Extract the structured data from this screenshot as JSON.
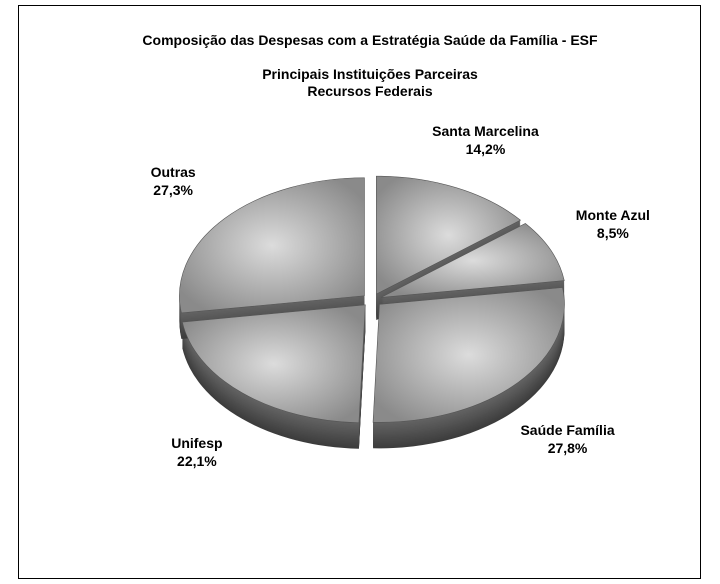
{
  "chart_data": {
    "type": "pie",
    "title": "Composição das Despesas com a Estratégia Saúde da Família - ESF",
    "subtitle": [
      "Principais Instituições Parceiras",
      "Recursos Federais"
    ],
    "categories": [
      "Santa Marcelina",
      "Monte Azul",
      "Saúde Família",
      "Unifesp",
      "Outras"
    ],
    "values": [
      14.2,
      8.5,
      27.8,
      22.1,
      27.3
    ],
    "value_labels": [
      "14,2%",
      "8,5%",
      "27,8%",
      "22,1%",
      "27,3%"
    ],
    "color": "#a8a8a8"
  }
}
